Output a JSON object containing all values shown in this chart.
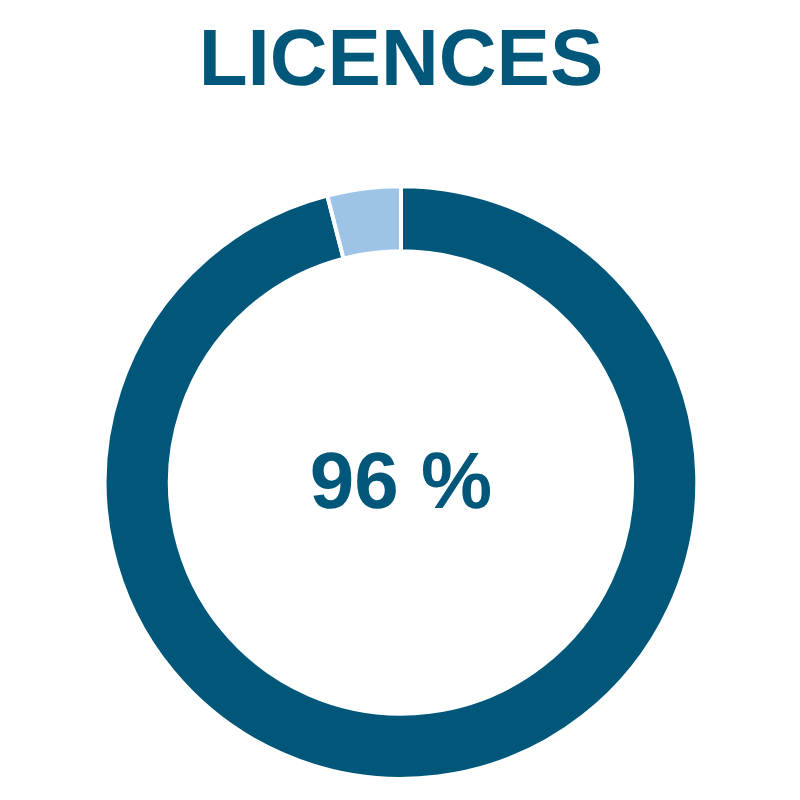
{
  "chart_data": {
    "type": "donut",
    "title": "LICENCES",
    "categories": [
      null,
      null
    ],
    "values": [
      96,
      4
    ],
    "colors": [
      "#00577a",
      "#9dc3e6"
    ],
    "annotations": [
      "96 %"
    ],
    "legend": false
  }
}
